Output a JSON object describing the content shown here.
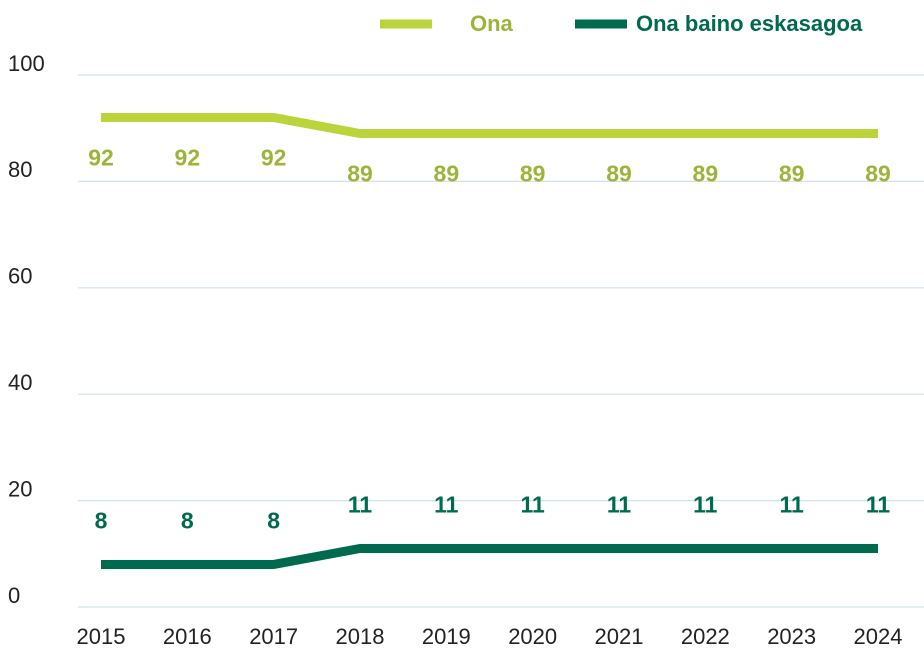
{
  "chart_data": {
    "type": "line",
    "categories": [
      "2015",
      "2016",
      "2017",
      "2018",
      "2019",
      "2020",
      "2021",
      "2022",
      "2023",
      "2024"
    ],
    "series": [
      {
        "name": "Ona",
        "color": "#bcd43c",
        "label_color": "#9cb43a",
        "values": [
          92,
          92,
          92,
          89,
          89,
          89,
          89,
          89,
          89,
          89
        ]
      },
      {
        "name": "Ona baino eskasagoa",
        "color": "#006a4e",
        "label_color": "#006a4e",
        "values": [
          8,
          8,
          8,
          11,
          11,
          11,
          11,
          11,
          11,
          11
        ]
      }
    ],
    "ylim": [
      0,
      100
    ],
    "yticks": [
      0,
      20,
      40,
      60,
      80,
      100
    ],
    "grid": true,
    "legend": "top-right"
  }
}
